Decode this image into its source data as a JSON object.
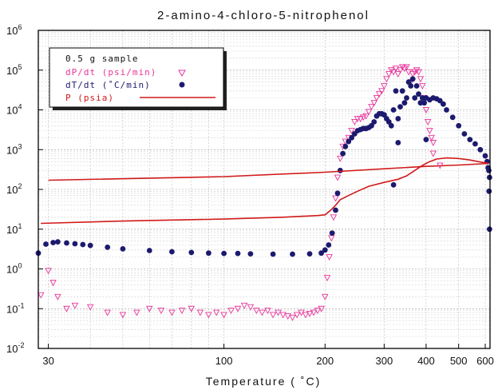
{
  "chart_data": {
    "type": "scatter",
    "title": "2-amino-4-chloro-5-nitrophenol",
    "xlabel": "Temperature  ( ˚C)",
    "ylabel": "",
    "x_scale": "log",
    "y_scale": "log",
    "xlim": [
      28,
      620
    ],
    "ylim": [
      0.01,
      1000000
    ],
    "x_ticks": [
      {
        "value": 30,
        "label": "30"
      },
      {
        "value": 100,
        "label": "100"
      },
      {
        "value": 200,
        "label": "200"
      },
      {
        "value": 300,
        "label": "300"
      },
      {
        "value": 400,
        "label": "400"
      },
      {
        "value": 500,
        "label": "500"
      },
      {
        "value": 600,
        "label": "600"
      }
    ],
    "y_ticks": [
      {
        "value": 0.01,
        "base": "10",
        "exp": "-2"
      },
      {
        "value": 0.1,
        "base": "10",
        "exp": "-1"
      },
      {
        "value": 1,
        "base": "10",
        "exp": "0"
      },
      {
        "value": 10,
        "base": "10",
        "exp": "1"
      },
      {
        "value": 100,
        "base": "10",
        "exp": "2"
      },
      {
        "value": 1000,
        "base": "10",
        "exp": "3"
      },
      {
        "value": 10000,
        "base": "10",
        "exp": "4"
      },
      {
        "value": 100000,
        "base": "10",
        "exp": "5"
      },
      {
        "value": 1000000,
        "base": "10",
        "exp": "6"
      }
    ],
    "grid": true,
    "legend_position": "top-left",
    "legend_note": "0.5  g  sample",
    "series": [
      {
        "name": "dP/dt  (psi/min)",
        "marker": "triangle-down-open",
        "color": "#e8359a",
        "x": [
          28.5,
          30,
          31,
          32,
          34,
          36,
          40,
          45,
          50,
          55,
          60,
          65,
          70,
          75,
          80,
          85,
          90,
          95,
          100,
          105,
          110,
          115,
          120,
          125,
          130,
          135,
          140,
          145,
          150,
          155,
          160,
          165,
          170,
          175,
          180,
          185,
          190,
          195,
          200,
          203,
          206,
          209,
          212,
          215,
          218,
          222,
          226,
          230,
          235,
          240,
          245,
          250,
          255,
          260,
          265,
          270,
          275,
          280,
          285,
          290,
          295,
          300,
          305,
          310,
          315,
          320,
          325,
          330,
          335,
          340,
          345,
          350,
          355,
          360,
          365,
          370,
          375,
          380,
          385,
          390,
          395,
          400,
          405,
          410,
          415,
          420
        ],
        "y": [
          0.22,
          0.9,
          0.45,
          0.2,
          0.1,
          0.12,
          0.11,
          0.08,
          0.07,
          0.08,
          0.1,
          0.09,
          0.08,
          0.09,
          0.1,
          0.08,
          0.07,
          0.08,
          0.07,
          0.09,
          0.1,
          0.12,
          0.11,
          0.09,
          0.08,
          0.09,
          0.07,
          0.08,
          0.07,
          0.065,
          0.06,
          0.07,
          0.08,
          0.07,
          0.075,
          0.08,
          0.09,
          0.1,
          0.2,
          0.6,
          2,
          6,
          20,
          60,
          200,
          600,
          1200,
          1600,
          2000,
          3000,
          5000,
          6000,
          6000,
          6500,
          7000,
          9000,
          12000,
          15000,
          20000,
          25000,
          30000,
          40000,
          60000,
          80000,
          100000,
          90000,
          110000,
          80000,
          100000,
          120000,
          110000,
          120000,
          90000,
          50000,
          80000,
          90000,
          100000,
          90000,
          60000,
          40000,
          20000,
          10000,
          5000,
          3000,
          2000,
          1500
        ]
      },
      {
        "name": "dT/dt  (˚C/min)",
        "marker": "circle-filled",
        "color": "#1c1a6e",
        "x": [
          28,
          29.5,
          31,
          32,
          34,
          36,
          38,
          40,
          45,
          50,
          60,
          70,
          80,
          90,
          100,
          110,
          120,
          140,
          160,
          180,
          195,
          200,
          205,
          210,
          215,
          218,
          222,
          226,
          230,
          235,
          240,
          245,
          250,
          255,
          260,
          265,
          270,
          275,
          280,
          285,
          290,
          295,
          300,
          305,
          310,
          315,
          320,
          325,
          330,
          335,
          340,
          345,
          350,
          355,
          360,
          365,
          370,
          375,
          380,
          385,
          390,
          395,
          400,
          410,
          420,
          430,
          440,
          450,
          460,
          480,
          500,
          520,
          540,
          560,
          580,
          600,
          608,
          612,
          615,
          618
        ],
        "y": [
          2.5,
          4.2,
          4.6,
          4.8,
          4.5,
          4.3,
          4.1,
          3.9,
          3.5,
          3.2,
          2.9,
          2.7,
          2.6,
          2.5,
          2.45,
          2.45,
          2.4,
          2.35,
          2.35,
          2.4,
          2.5,
          3,
          4,
          8,
          30,
          80,
          300,
          800,
          1200,
          1600,
          2000,
          2500,
          3000,
          3200,
          3400,
          3400,
          3600,
          4000,
          5000,
          7000,
          8000,
          8000,
          7500,
          6000,
          5000,
          4000,
          10000,
          30000,
          6000,
          12000,
          30000,
          15000,
          20000,
          50000,
          40000,
          60000,
          20000,
          40000,
          25000,
          15000,
          20000,
          15000,
          20000,
          18000,
          20000,
          19000,
          17000,
          14000,
          10000,
          6500,
          4000,
          2500,
          1800,
          1400,
          1000,
          700,
          500,
          350,
          300,
          200
        ]
      },
      {
        "name": "P  (psia)",
        "marker": "line",
        "color": "#d11a1a",
        "x": [
          28.5,
          50,
          100,
          150,
          190,
          200,
          208,
          215,
          222,
          235,
          250,
          270,
          300,
          330,
          350,
          370,
          390,
          410,
          430,
          460,
          500,
          540,
          580,
          615
        ],
        "y": [
          14,
          16,
          18,
          20,
          22,
          23,
          30,
          40,
          55,
          70,
          90,
          120,
          150,
          180,
          220,
          300,
          400,
          500,
          580,
          620,
          600,
          550,
          490,
          450
        ]
      },
      {
        "name": "",
        "marker": "line",
        "color": "#d11a1a",
        "x": [
          30,
          100,
          200,
          300,
          400,
          500,
          615
        ],
        "y": [
          170,
          210,
          270,
          330,
          380,
          410,
          450
        ]
      }
    ],
    "annotations": [
      {
        "type": "outlier-point",
        "series": "dT/dt  (˚C/min)",
        "x": 320,
        "y": 130
      },
      {
        "type": "outlier-point",
        "series": "dT/dt  (˚C/min)",
        "x": 330,
        "y": 1500
      },
      {
        "type": "outlier-point",
        "series": "dT/dt  (˚C/min)",
        "x": 400,
        "y": 1800
      },
      {
        "type": "outlier-point",
        "series": "dT/dt  (˚C/min)",
        "x": 618,
        "y": 10
      },
      {
        "type": "outlier-point",
        "series": "dT/dt  (˚C/min)",
        "x": 616,
        "y": 90
      },
      {
        "type": "outlier-point",
        "series": "dP/dt  (psi/min)",
        "x": 440,
        "y": 400
      },
      {
        "type": "outlier-point",
        "series": "dP/dt  (psi/min)",
        "x": 420,
        "y": 800
      }
    ]
  }
}
